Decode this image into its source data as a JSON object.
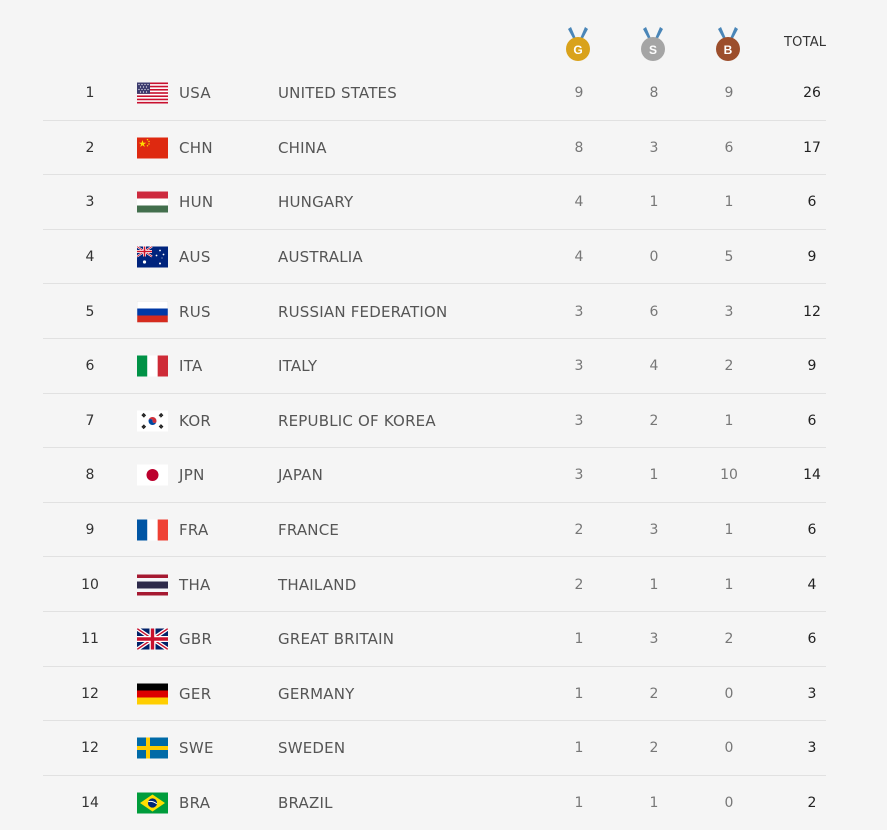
{
  "header": {
    "gold_letter": "G",
    "silver_letter": "S",
    "bronze_letter": "B",
    "total_label": "TOTAL"
  },
  "colors": {
    "gold": "#d9a21b",
    "silver": "#a5a5a5",
    "bronze": "#9c4e2c",
    "ribbon": "#4a86b8",
    "row_divider": "#e1e1e1"
  },
  "rows": [
    {
      "rank": "1",
      "flag": "usa-flag-icon",
      "code": "USA",
      "country": "UNITED STATES",
      "gold": "9",
      "silver": "8",
      "bronze": "9",
      "total": "26"
    },
    {
      "rank": "2",
      "flag": "chn-flag-icon",
      "code": "CHN",
      "country": "CHINA",
      "gold": "8",
      "silver": "3",
      "bronze": "6",
      "total": "17"
    },
    {
      "rank": "3",
      "flag": "hun-flag-icon",
      "code": "HUN",
      "country": "HUNGARY",
      "gold": "4",
      "silver": "1",
      "bronze": "1",
      "total": "6"
    },
    {
      "rank": "4",
      "flag": "aus-flag-icon",
      "code": "AUS",
      "country": "AUSTRALIA",
      "gold": "4",
      "silver": "0",
      "bronze": "5",
      "total": "9"
    },
    {
      "rank": "5",
      "flag": "rus-flag-icon",
      "code": "RUS",
      "country": "RUSSIAN FEDERATION",
      "gold": "3",
      "silver": "6",
      "bronze": "3",
      "total": "12"
    },
    {
      "rank": "6",
      "flag": "ita-flag-icon",
      "code": "ITA",
      "country": "ITALY",
      "gold": "3",
      "silver": "4",
      "bronze": "2",
      "total": "9"
    },
    {
      "rank": "7",
      "flag": "kor-flag-icon",
      "code": "KOR",
      "country": "REPUBLIC OF KOREA",
      "gold": "3",
      "silver": "2",
      "bronze": "1",
      "total": "6"
    },
    {
      "rank": "8",
      "flag": "jpn-flag-icon",
      "code": "JPN",
      "country": "JAPAN",
      "gold": "3",
      "silver": "1",
      "bronze": "10",
      "total": "14"
    },
    {
      "rank": "9",
      "flag": "fra-flag-icon",
      "code": "FRA",
      "country": "FRANCE",
      "gold": "2",
      "silver": "3",
      "bronze": "1",
      "total": "6"
    },
    {
      "rank": "10",
      "flag": "tha-flag-icon",
      "code": "THA",
      "country": "THAILAND",
      "gold": "2",
      "silver": "1",
      "bronze": "1",
      "total": "4"
    },
    {
      "rank": "11",
      "flag": "gbr-flag-icon",
      "code": "GBR",
      "country": "GREAT BRITAIN",
      "gold": "1",
      "silver": "3",
      "bronze": "2",
      "total": "6"
    },
    {
      "rank": "12",
      "flag": "ger-flag-icon",
      "code": "GER",
      "country": "GERMANY",
      "gold": "1",
      "silver": "2",
      "bronze": "0",
      "total": "3"
    },
    {
      "rank": "12",
      "flag": "swe-flag-icon",
      "code": "SWE",
      "country": "SWEDEN",
      "gold": "1",
      "silver": "2",
      "bronze": "0",
      "total": "3"
    },
    {
      "rank": "14",
      "flag": "bra-flag-icon",
      "code": "BRA",
      "country": "BRAZIL",
      "gold": "1",
      "silver": "1",
      "bronze": "0",
      "total": "2"
    }
  ]
}
